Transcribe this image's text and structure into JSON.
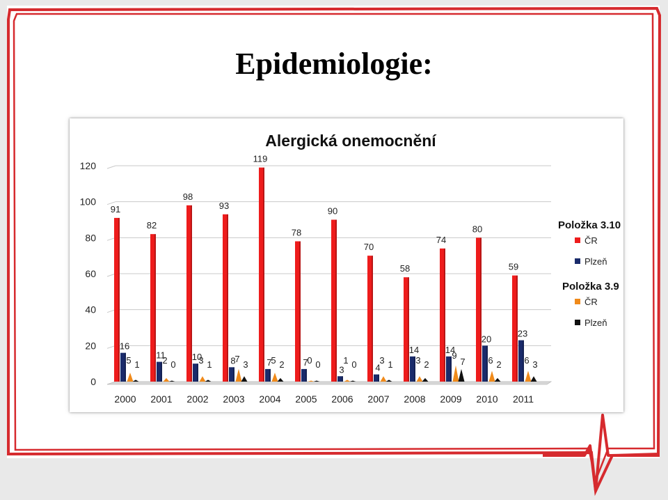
{
  "slide": {
    "title": "Epidemiologie:"
  },
  "colors": {
    "frame_red": "#d62a2e",
    "cr_3_10": "#ee1c1c",
    "plzen_3_10": "#1a2b6b",
    "cr_3_9": "#f08a1a",
    "plzen_3_9": "#111111",
    "grid": "#c8c8c8"
  },
  "chart_data": {
    "type": "bar",
    "title": "Alergická onemocnění",
    "categories": [
      "2000",
      "2001",
      "2002",
      "2003",
      "2004",
      "2005",
      "2006",
      "2007",
      "2008",
      "2009",
      "2010",
      "2011"
    ],
    "ylim": [
      0,
      120
    ],
    "yticks": [
      0,
      20,
      40,
      60,
      80,
      100,
      120
    ],
    "grid": true,
    "legend_position": "right",
    "legend_groups": [
      {
        "heading": "Položka 3.10",
        "items": [
          "ČR",
          "Plzeň"
        ]
      },
      {
        "heading": "Položka 3.9",
        "items": [
          "ČR",
          "Plzeň"
        ]
      }
    ],
    "series": [
      {
        "name": "ČR",
        "group": "Položka 3.10",
        "color": "#ee1c1c",
        "shape": "bar",
        "values": [
          91,
          82,
          98,
          93,
          119,
          78,
          90,
          70,
          58,
          74,
          80,
          59
        ]
      },
      {
        "name": "Plzeň",
        "group": "Položka 3.10",
        "color": "#1a2b6b",
        "shape": "bar",
        "values": [
          16,
          11,
          10,
          8,
          7,
          7,
          3,
          4,
          14,
          14,
          20,
          23
        ]
      },
      {
        "name": "ČR",
        "group": "Položka 3.9",
        "color": "#f08a1a",
        "shape": "cone",
        "values": [
          5,
          2,
          3,
          7,
          5,
          0,
          1,
          3,
          3,
          9,
          6,
          6
        ]
      },
      {
        "name": "Plzeň",
        "group": "Položka 3.9",
        "color": "#111111",
        "shape": "cone",
        "values": [
          1,
          0,
          1,
          3,
          2,
          0,
          0,
          1,
          2,
          7,
          2,
          3
        ]
      }
    ]
  }
}
